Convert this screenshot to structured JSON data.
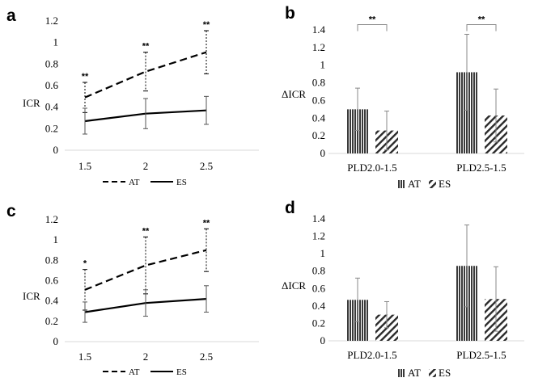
{
  "chart_data": [
    {
      "type": "line",
      "panel": "a",
      "ylabel": "ICR",
      "x": [
        "1.5",
        "2",
        "2.5"
      ],
      "yticks": [
        "0",
        "0.2",
        "0.4",
        "0.6",
        "0.8",
        "1",
        "1.2"
      ],
      "ylim": [
        0,
        1.2
      ],
      "series": [
        {
          "name": "AT",
          "style": "dashed",
          "values": [
            0.49,
            0.73,
            0.91
          ],
          "errors": [
            0.14,
            0.18,
            0.2
          ]
        },
        {
          "name": "ES",
          "style": "solid",
          "values": [
            0.27,
            0.34,
            0.37
          ],
          "errors": [
            0.12,
            0.14,
            0.13
          ]
        }
      ],
      "annotations": [
        "**",
        "**",
        "**"
      ],
      "legend": [
        "AT",
        "ES"
      ]
    },
    {
      "type": "bar",
      "panel": "b",
      "ylabel": "ΔICR",
      "categories": [
        "PLD2.0-1.5",
        "PLD2.5-1.5"
      ],
      "yticks": [
        "0",
        "0.2",
        "0.4",
        "0.6",
        "0.8",
        "1",
        "1.2",
        "1.4"
      ],
      "ylim": [
        0,
        1.4
      ],
      "series": [
        {
          "name": "AT",
          "pattern": "vertical",
          "values": [
            0.5,
            0.92
          ],
          "errors": [
            0.24,
            0.43
          ]
        },
        {
          "name": "ES",
          "pattern": "diagonal",
          "values": [
            0.26,
            0.43
          ],
          "errors": [
            0.22,
            0.3
          ]
        }
      ],
      "annotations": [
        "**",
        "**"
      ],
      "legend": [
        "AT",
        "ES"
      ]
    },
    {
      "type": "line",
      "panel": "c",
      "ylabel": "ICR",
      "x": [
        "1.5",
        "2",
        "2.5"
      ],
      "yticks": [
        "0",
        "0.2",
        "0.4",
        "0.6",
        "0.8",
        "1",
        "1.2"
      ],
      "ylim": [
        0,
        1.2
      ],
      "series": [
        {
          "name": "AT",
          "style": "dashed",
          "values": [
            0.51,
            0.75,
            0.9
          ],
          "errors": [
            0.2,
            0.28,
            0.21
          ]
        },
        {
          "name": "ES",
          "style": "solid",
          "values": [
            0.29,
            0.38,
            0.42
          ],
          "errors": [
            0.1,
            0.13,
            0.13
          ]
        }
      ],
      "annotations": [
        "*",
        "**",
        "**"
      ],
      "legend": [
        "AT",
        "ES"
      ]
    },
    {
      "type": "bar",
      "panel": "d",
      "ylabel": "ΔICR",
      "categories": [
        "PLD2.0-1.5",
        "PLD2.5-1.5"
      ],
      "yticks": [
        "0",
        "0.2",
        "0.4",
        "0.6",
        "0.8",
        "1",
        "1.2",
        "1.4"
      ],
      "ylim": [
        0,
        1.4
      ],
      "series": [
        {
          "name": "AT",
          "pattern": "vertical",
          "values": [
            0.47,
            0.86
          ],
          "errors": [
            0.25,
            0.47
          ]
        },
        {
          "name": "ES",
          "pattern": "diagonal",
          "values": [
            0.3,
            0.48
          ],
          "errors": [
            0.15,
            0.37
          ]
        }
      ],
      "annotations": [],
      "legend": [
        "AT",
        "ES"
      ]
    }
  ]
}
